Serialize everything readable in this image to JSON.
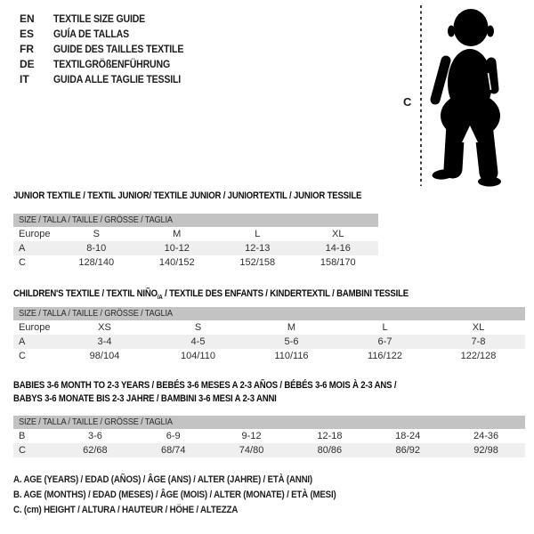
{
  "colors": {
    "header_bar": "#c3c3c3",
    "row_alt": "#efefef",
    "text": "#1d1d1d",
    "silhouette": "#000000"
  },
  "header": {
    "languages": [
      {
        "code": "EN",
        "label": "TEXTILE SIZE GUIDE"
      },
      {
        "code": "ES",
        "label": "GUÍA DE TALLAS"
      },
      {
        "code": "FR",
        "label": "GUIDE DES TAILLES TEXTILE"
      },
      {
        "code": "DE",
        "label": "TEXTILGRÖßENFÜHRUNG"
      },
      {
        "code": "IT",
        "label": "GUIDA ALLE TAGLIE TESSILI"
      }
    ],
    "figure": {
      "height_label": "C"
    }
  },
  "tables": [
    {
      "title": "JUNIOR TEXTILE / TEXTIL JUNIOR/ TEXTILE JUNIOR / JUNIORTEXTIL / JUNIOR TESSILE",
      "size_header": "SIZE / TALLA / TAILLE / GRÖSSE / TAGLIA",
      "rows": [
        [
          "Europe",
          "S",
          "M",
          "L",
          "XL"
        ],
        [
          "A",
          "8-10",
          "10-12",
          "12-13",
          "14-16"
        ],
        [
          "C",
          "128/140",
          "140/152",
          "152/158",
          "158/170"
        ]
      ]
    },
    {
      "title_pre": "CHILDREN'S TEXTILE / TEXTIL NIÑO",
      "title_sub": "/A",
      "title_post": " / TEXTILE DES ENFANTS / KINDERTEXTIL / BAMBINI TESSILE",
      "size_header": "SIZE / TALLA / TAILLE / GRÖSSE / TAGLIA",
      "rows": [
        [
          "Europe",
          "XS",
          "S",
          "M",
          "L",
          "XL"
        ],
        [
          "A",
          "3-4",
          "4-5",
          "5-6",
          "6-7",
          "7-8"
        ],
        [
          "C",
          "98/104",
          "104/110",
          "110/116",
          "116/122",
          "122/128"
        ]
      ]
    },
    {
      "title_line1": "BABIES 3-6 MONTH TO 2-3 YEARS / BEBÉS 3-6 MESES A 2-3 AÑOS / BÉBÉS 3-6 MOIS À 2-3 ANS /",
      "title_line2": "BABYS 3-6 MONATE BIS 2-3 JAHRE / BAMBINI 3-6 MESI A 2-3 ANNI",
      "size_header": "SIZE / TALLA / TAILLE / GRÖSSE / TAGLIA",
      "rows": [
        [
          "B",
          "3-6",
          "6-9",
          "9-12",
          "12-18",
          "18-24",
          "24-36"
        ],
        [
          "C",
          "62/68",
          "68/74",
          "74/80",
          "80/86",
          "86/92",
          "92/98"
        ]
      ]
    }
  ],
  "footnotes": [
    "A. AGE (YEARS) / EDAD (AÑOS) / ÂGE (ANS) / ALTER (JAHRE) / ETÀ (ANNI)",
    "B. AGE (MONTHS) / EDAD (MESES) / ÂGE (MOIS) / ALTER (MONATE) / ETÀ (MESI)",
    "C. (cm) HEIGHT / ALTURA / HAUTEUR / HÖHE / ALTEZZA"
  ]
}
